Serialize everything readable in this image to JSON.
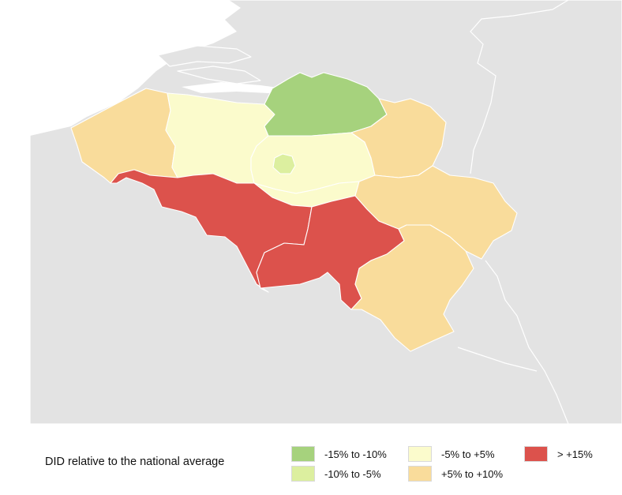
{
  "legend": {
    "title": "DID relative to the national average",
    "items": [
      {
        "label": "-15% to -10%",
        "color": "#a6d27d"
      },
      {
        "label": "-10% to -5%",
        "color": "#dcef9f"
      },
      {
        "label": "-5% to +5%",
        "color": "#fbfbcc"
      },
      {
        "label": "+5% to +10%",
        "color": "#f9dc9b"
      },
      {
        "label": "> +15%",
        "color": "#dc524c"
      }
    ]
  },
  "map": {
    "background_color": "#e3e3e3",
    "regions": [
      {
        "name": "Antwerpen",
        "category": "-15% to -10%"
      },
      {
        "name": "Brussels",
        "category": "-10% to -5%"
      },
      {
        "name": "Oost-Vlaanderen",
        "category": "-5% to +5%"
      },
      {
        "name": "Vlaams-Brabant",
        "category": "-5% to +5%"
      },
      {
        "name": "Brabant wallon",
        "category": "-5% to +5%"
      },
      {
        "name": "West-Vlaanderen",
        "category": "+5% to +10%"
      },
      {
        "name": "Limburg",
        "category": "+5% to +10%"
      },
      {
        "name": "Liege",
        "category": "+5% to +10%"
      },
      {
        "name": "Luxembourg",
        "category": "+5% to +10%"
      },
      {
        "name": "Hainaut",
        "category": "> +15%"
      },
      {
        "name": "Namur",
        "category": "> +15%"
      }
    ]
  }
}
